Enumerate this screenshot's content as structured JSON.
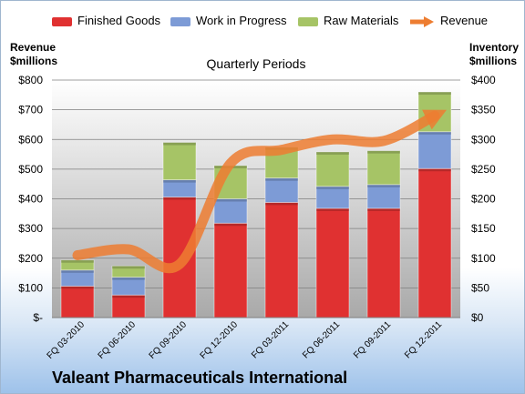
{
  "chart_data": {
    "type": "bar",
    "title": "Quarterly Periods",
    "company": "Valeant Pharmaceuticals International",
    "left_axis_label": [
      "Revenue",
      "$millions"
    ],
    "right_axis_label": [
      "Inventory",
      "$millions"
    ],
    "categories": [
      "FQ 03-2010",
      "FQ 06-2010",
      "FQ 09-2010",
      "FQ 12-2010",
      "FQ 03-2011",
      "FQ 06-2011",
      "FQ 09-2011",
      "FQ 12-2011"
    ],
    "left_ticks": [
      "$-",
      "$100",
      "$200",
      "$300",
      "$400",
      "$500",
      "$600",
      "$700",
      "$800"
    ],
    "right_ticks": [
      "$0",
      "$50",
      "$100",
      "$150",
      "$200",
      "$250",
      "$300",
      "$350",
      "$400"
    ],
    "left_ylim": [
      0,
      800
    ],
    "right_ylim": [
      0,
      400
    ],
    "stacked": true,
    "series": [
      {
        "name": "Finished Goods",
        "axis": "right",
        "color": "#e03131",
        "values": [
          53,
          38,
          203,
          159,
          194,
          184,
          184,
          251
        ]
      },
      {
        "name": "Work in Progress",
        "axis": "right",
        "color": "#7d9bd6",
        "values": [
          27,
          30,
          29,
          41,
          41,
          37,
          40,
          62
        ]
      },
      {
        "name": "Raw Materials",
        "axis": "right",
        "color": "#a6c466",
        "values": [
          17,
          19,
          63,
          56,
          52,
          58,
          57,
          67
        ]
      }
    ],
    "line_series": {
      "name": "Revenue",
      "axis": "left",
      "color": "#ed7d31",
      "values": [
        210,
        230,
        180,
        520,
        565,
        600,
        595,
        680
      ]
    },
    "grid": true,
    "legend": "top"
  }
}
